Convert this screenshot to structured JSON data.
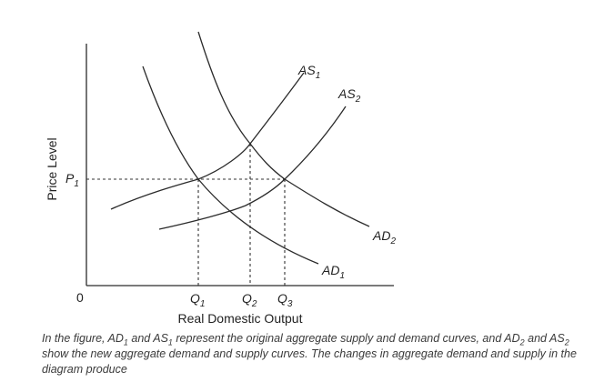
{
  "diagram": {
    "curves": {
      "as1": {
        "main": "AS",
        "sub": "1"
      },
      "as2": {
        "main": "AS",
        "sub": "2"
      },
      "ad1": {
        "main": "AD",
        "sub": "1"
      },
      "ad2": {
        "main": "AD",
        "sub": "2"
      }
    },
    "price_label": {
      "main": "P",
      "sub": "1"
    },
    "quantities": {
      "q1": {
        "main": "Q",
        "sub": "1"
      },
      "q2": {
        "main": "Q",
        "sub": "2"
      },
      "q3": {
        "main": "Q",
        "sub": "3"
      }
    },
    "origin_label": "0",
    "x_axis_title": "Real Domestic Output",
    "y_axis_title": "Price Level"
  },
  "caption": {
    "p1": "In the figure, AD",
    "s1": "1",
    "p2": " and AS",
    "s2": "1",
    "p3": " represent the original aggregate supply and demand curves, and AD",
    "s3": "2",
    "p4": " and AS",
    "s4": "2",
    "p5": " show the new aggregate demand and supply curves. The changes in aggregate demand and supply in the diagram produce"
  }
}
